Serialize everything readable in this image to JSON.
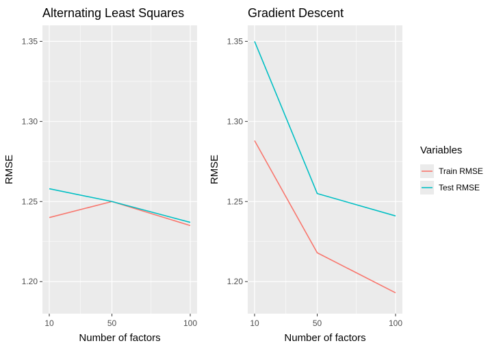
{
  "chart_data": [
    {
      "type": "line",
      "title": "Alternating Least Squares",
      "xlabel": "Number of factors",
      "ylabel": "RMSE",
      "x": [
        10,
        50,
        100
      ],
      "xticks": [
        "10",
        "50",
        "100"
      ],
      "ylim": [
        1.18,
        1.36
      ],
      "yticks": [
        "1.20",
        "1.25",
        "1.30",
        "1.35"
      ],
      "series": [
        {
          "name": "Train RMSE",
          "values": [
            1.24,
            1.25,
            1.235
          ]
        },
        {
          "name": "Test RMSE",
          "values": [
            1.258,
            1.25,
            1.237
          ]
        }
      ],
      "grid": true
    },
    {
      "type": "line",
      "title": "Gradient Descent",
      "xlabel": "Number of factors",
      "ylabel": "RMSE",
      "x": [
        10,
        50,
        100
      ],
      "xticks": [
        "10",
        "50",
        "100"
      ],
      "ylim": [
        1.18,
        1.36
      ],
      "yticks": [
        "1.20",
        "1.25",
        "1.30",
        "1.35"
      ],
      "series": [
        {
          "name": "Train RMSE",
          "values": [
            1.288,
            1.218,
            1.193
          ]
        },
        {
          "name": "Test RMSE",
          "values": [
            1.35,
            1.255,
            1.241
          ]
        }
      ],
      "grid": true
    }
  ],
  "legend": {
    "title": "Variables",
    "placement": "right",
    "items": [
      {
        "label": "Train RMSE",
        "color": "#F8766D"
      },
      {
        "label": "Test RMSE",
        "color": "#00BFC4"
      }
    ]
  },
  "colors": {
    "panel_bg": "#EBEBEB",
    "grid": "#FFFFFF",
    "train": "#F8766D",
    "test": "#00BFC4"
  }
}
